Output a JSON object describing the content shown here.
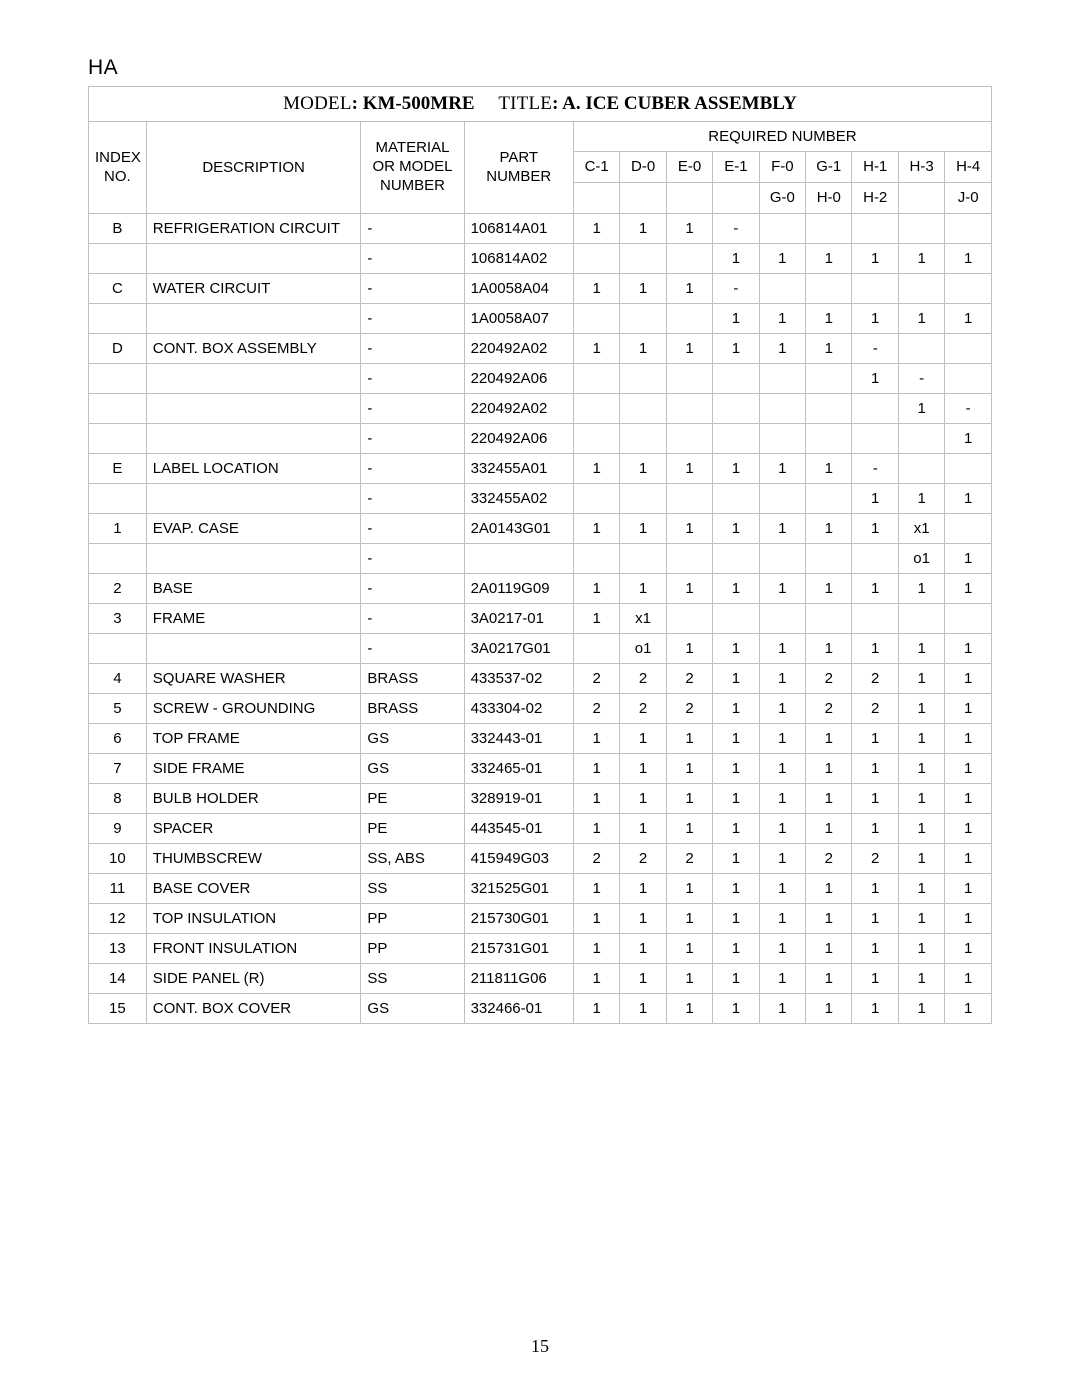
{
  "page_label": "HA",
  "page_number": "15",
  "title": {
    "model_label": "MODEL",
    "model_value": "KM-500MRE",
    "title_label": "TITLE",
    "title_value": "A. ICE CUBER ASSEMBLY"
  },
  "headers": {
    "index_no": "INDEX NO.",
    "description": "DESCRIPTION",
    "material": "MATERIAL OR MODEL NUMBER",
    "part_number": "PART NUMBER",
    "required_number": "REQUIRED NUMBER"
  },
  "unit_codes_row1": [
    "C-1",
    "D-0",
    "E-0",
    "E-1",
    "F-0",
    "G-1",
    "H-1",
    "H-3",
    "H-4"
  ],
  "unit_codes_row2": [
    "",
    "",
    "",
    "",
    "G-0",
    "H-0",
    "H-2",
    "",
    "J-0"
  ],
  "rows": [
    {
      "idx": "B",
      "desc": "REFRIGERATION CIRCUIT",
      "mat": "-",
      "part": "106814A01",
      "q": [
        "1",
        "1",
        "1",
        "-",
        "",
        "",
        "",
        "",
        ""
      ]
    },
    {
      "idx": "",
      "desc": "",
      "mat": "-",
      "part": "106814A02",
      "q": [
        "",
        "",
        "",
        "1",
        "1",
        "1",
        "1",
        "1",
        "1"
      ]
    },
    {
      "idx": "C",
      "desc": "WATER CIRCUIT",
      "mat": "-",
      "part": "1A0058A04",
      "q": [
        "1",
        "1",
        "1",
        "-",
        "",
        "",
        "",
        "",
        ""
      ]
    },
    {
      "idx": "",
      "desc": "",
      "mat": "-",
      "part": "1A0058A07",
      "q": [
        "",
        "",
        "",
        "1",
        "1",
        "1",
        "1",
        "1",
        "1"
      ]
    },
    {
      "idx": "D",
      "desc": "CONT. BOX ASSEMBLY",
      "mat": "-",
      "part": "220492A02",
      "q": [
        "1",
        "1",
        "1",
        "1",
        "1",
        "1",
        "-",
        "",
        ""
      ]
    },
    {
      "idx": "",
      "desc": "",
      "mat": "-",
      "part": "220492A06",
      "q": [
        "",
        "",
        "",
        "",
        "",
        "",
        "1",
        "-",
        ""
      ]
    },
    {
      "idx": "",
      "desc": "",
      "mat": "-",
      "part": "220492A02",
      "q": [
        "",
        "",
        "",
        "",
        "",
        "",
        "",
        "1",
        "-"
      ]
    },
    {
      "idx": "",
      "desc": "",
      "mat": "-",
      "part": "220492A06",
      "q": [
        "",
        "",
        "",
        "",
        "",
        "",
        "",
        "",
        "1"
      ]
    },
    {
      "idx": "E",
      "desc": "LABEL LOCATION",
      "mat": "-",
      "part": "332455A01",
      "q": [
        "1",
        "1",
        "1",
        "1",
        "1",
        "1",
        "-",
        "",
        ""
      ]
    },
    {
      "idx": "",
      "desc": "",
      "mat": "-",
      "part": "332455A02",
      "q": [
        "",
        "",
        "",
        "",
        "",
        "",
        "1",
        "1",
        "1"
      ]
    },
    {
      "idx": "1",
      "desc": "EVAP. CASE",
      "mat": "-",
      "part": "2A0143G01",
      "q": [
        "1",
        "1",
        "1",
        "1",
        "1",
        "1",
        "1",
        "x1",
        ""
      ]
    },
    {
      "idx": "",
      "desc": "",
      "mat": "-",
      "part": "",
      "q": [
        "",
        "",
        "",
        "",
        "",
        "",
        "",
        "o1",
        "1"
      ]
    },
    {
      "idx": "2",
      "desc": "BASE",
      "mat": "-",
      "part": "2A0119G09",
      "q": [
        "1",
        "1",
        "1",
        "1",
        "1",
        "1",
        "1",
        "1",
        "1"
      ]
    },
    {
      "idx": "3",
      "desc": "FRAME",
      "mat": "-",
      "part": "3A0217-01",
      "q": [
        "1",
        "x1",
        "",
        "",
        "",
        "",
        "",
        "",
        ""
      ]
    },
    {
      "idx": "",
      "desc": "",
      "mat": "-",
      "part": "3A0217G01",
      "q": [
        "",
        "o1",
        "1",
        "1",
        "1",
        "1",
        "1",
        "1",
        "1"
      ]
    },
    {
      "idx": "4",
      "desc": "SQUARE WASHER",
      "mat": "BRASS",
      "part": "433537-02",
      "q": [
        "2",
        "2",
        "2",
        "1",
        "1",
        "2",
        "2",
        "1",
        "1"
      ]
    },
    {
      "idx": "5",
      "desc": "SCREW - GROUNDING",
      "mat": "BRASS",
      "part": "433304-02",
      "q": [
        "2",
        "2",
        "2",
        "1",
        "1",
        "2",
        "2",
        "1",
        "1"
      ]
    },
    {
      "idx": "6",
      "desc": "TOP FRAME",
      "mat": "GS",
      "part": "332443-01",
      "q": [
        "1",
        "1",
        "1",
        "1",
        "1",
        "1",
        "1",
        "1",
        "1"
      ]
    },
    {
      "idx": "7",
      "desc": "SIDE FRAME",
      "mat": "GS",
      "part": "332465-01",
      "q": [
        "1",
        "1",
        "1",
        "1",
        "1",
        "1",
        "1",
        "1",
        "1"
      ]
    },
    {
      "idx": "8",
      "desc": "BULB HOLDER",
      "mat": "PE",
      "part": "328919-01",
      "q": [
        "1",
        "1",
        "1",
        "1",
        "1",
        "1",
        "1",
        "1",
        "1"
      ]
    },
    {
      "idx": "9",
      "desc": "SPACER",
      "mat": "PE",
      "part": "443545-01",
      "q": [
        "1",
        "1",
        "1",
        "1",
        "1",
        "1",
        "1",
        "1",
        "1"
      ]
    },
    {
      "idx": "10",
      "desc": "THUMBSCREW",
      "mat": "SS, ABS",
      "part": "415949G03",
      "q": [
        "2",
        "2",
        "2",
        "1",
        "1",
        "2",
        "2",
        "1",
        "1"
      ]
    },
    {
      "idx": "11",
      "desc": "BASE COVER",
      "mat": "SS",
      "part": "321525G01",
      "q": [
        "1",
        "1",
        "1",
        "1",
        "1",
        "1",
        "1",
        "1",
        "1"
      ]
    },
    {
      "idx": "12",
      "desc": "TOP INSULATION",
      "mat": "PP",
      "part": "215730G01",
      "q": [
        "1",
        "1",
        "1",
        "1",
        "1",
        "1",
        "1",
        "1",
        "1"
      ]
    },
    {
      "idx": "13",
      "desc": "FRONT INSULATION",
      "mat": "PP",
      "part": "215731G01",
      "q": [
        "1",
        "1",
        "1",
        "1",
        "1",
        "1",
        "1",
        "1",
        "1"
      ]
    },
    {
      "idx": "14",
      "desc": "SIDE PANEL (R)",
      "mat": "SS",
      "part": "211811G06",
      "q": [
        "1",
        "1",
        "1",
        "1",
        "1",
        "1",
        "1",
        "1",
        "1"
      ]
    },
    {
      "idx": "15",
      "desc": "CONT. BOX COVER",
      "mat": "GS",
      "part": "332466-01",
      "q": [
        "1",
        "1",
        "1",
        "1",
        "1",
        "1",
        "1",
        "1",
        "1"
      ]
    }
  ],
  "colors": {
    "border": "#bfbfbf",
    "text": "#000000",
    "background": "#ffffff"
  }
}
